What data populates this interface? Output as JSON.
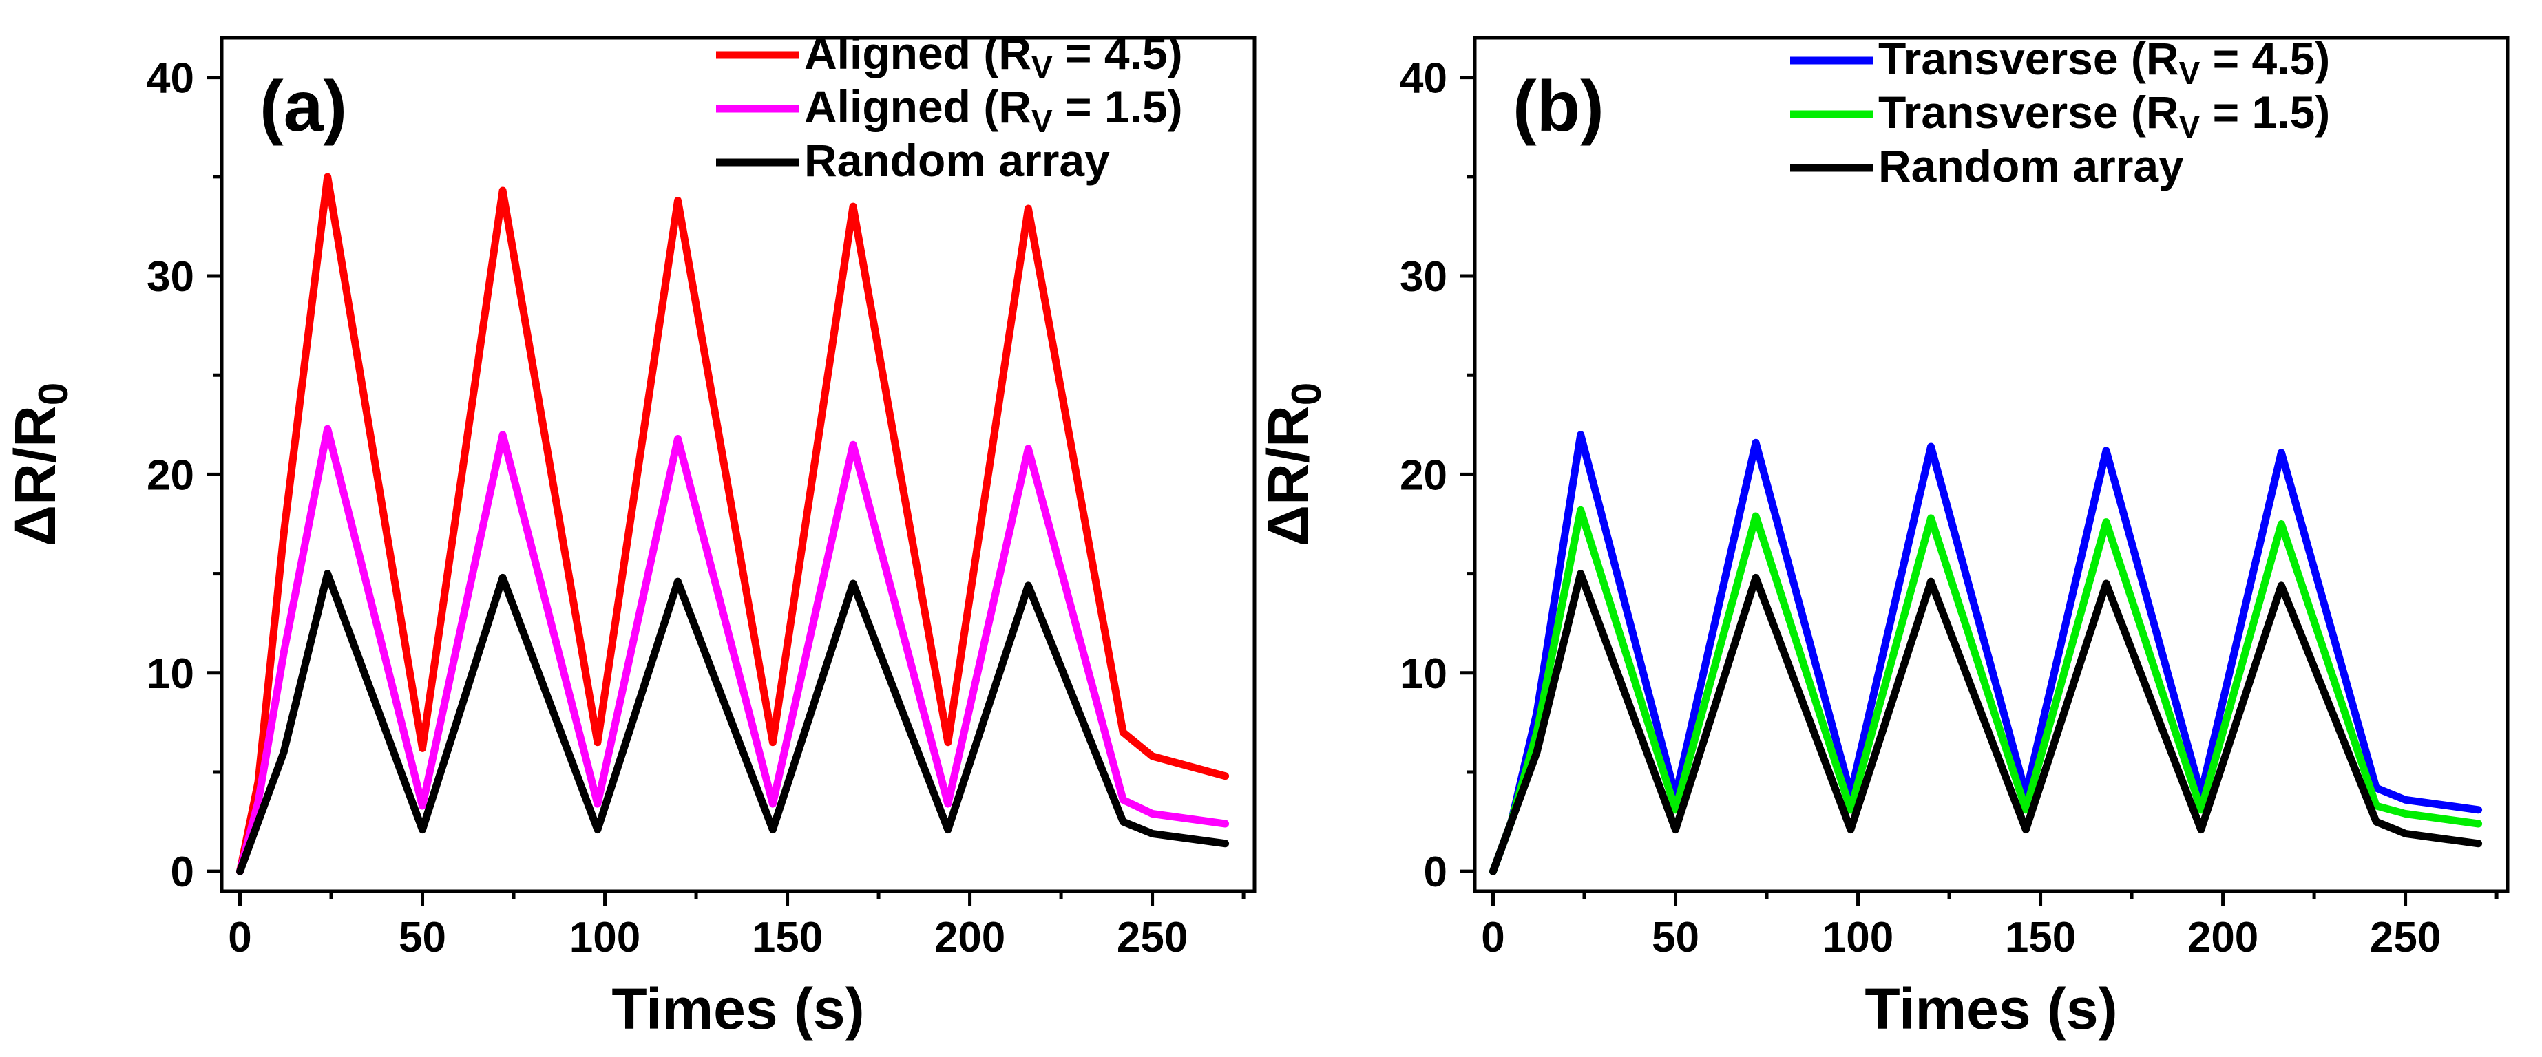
{
  "chart_data": [
    {
      "type": "line",
      "panel_label": "(a)",
      "xlabel": "Times (s)",
      "ylabel": {
        "main": "ΔR/R",
        "sub": "0"
      },
      "xlim": [
        -5,
        278
      ],
      "ylim": [
        -1,
        42
      ],
      "xticks": [
        0,
        50,
        100,
        150,
        200,
        250
      ],
      "yticks": [
        0,
        10,
        20,
        30,
        40
      ],
      "legend_position": "top-right",
      "series": [
        {
          "name": "Aligned (RV = 4.5)",
          "label_parts": [
            "Aligned (R",
            "V",
            " = 4.5)"
          ],
          "color": "#ff0000",
          "points": [
            [
              0,
              0
            ],
            [
              5,
              4.5
            ],
            [
              12,
              17
            ],
            [
              24,
              35
            ],
            [
              50,
              6.2
            ],
            [
              72,
              34.3
            ],
            [
              98,
              6.5
            ],
            [
              120,
              33.8
            ],
            [
              146,
              6.5
            ],
            [
              168,
              33.5
            ],
            [
              194,
              6.5
            ],
            [
              216,
              33.4
            ],
            [
              242,
              7
            ],
            [
              250,
              5.8
            ],
            [
              270,
              4.8
            ]
          ]
        },
        {
          "name": "Aligned (RV = 1.5)",
          "label_parts": [
            "Aligned (R",
            "V",
            " = 1.5)"
          ],
          "color": "#ff00ff",
          "points": [
            [
              0,
              0
            ],
            [
              5,
              3.5
            ],
            [
              12,
              11
            ],
            [
              24,
              22.3
            ],
            [
              50,
              3.3
            ],
            [
              72,
              22
            ],
            [
              98,
              3.4
            ],
            [
              120,
              21.8
            ],
            [
              146,
              3.4
            ],
            [
              168,
              21.5
            ],
            [
              194,
              3.4
            ],
            [
              216,
              21.3
            ],
            [
              242,
              3.6
            ],
            [
              250,
              2.9
            ],
            [
              270,
              2.4
            ]
          ]
        },
        {
          "name": "Random array",
          "label_parts": [
            "Random array",
            "",
            ""
          ],
          "color": "#000000",
          "points": [
            [
              0,
              0
            ],
            [
              5,
              2.5
            ],
            [
              12,
              6
            ],
            [
              24,
              15
            ],
            [
              50,
              2.1
            ],
            [
              72,
              14.8
            ],
            [
              98,
              2.1
            ],
            [
              120,
              14.6
            ],
            [
              146,
              2.1
            ],
            [
              168,
              14.5
            ],
            [
              194,
              2.1
            ],
            [
              216,
              14.4
            ],
            [
              242,
              2.5
            ],
            [
              250,
              1.9
            ],
            [
              270,
              1.4
            ]
          ]
        }
      ]
    },
    {
      "type": "line",
      "panel_label": "(b)",
      "xlabel": "Times (s)",
      "ylabel": {
        "main": "ΔR/R",
        "sub": "0"
      },
      "xlim": [
        -5,
        278
      ],
      "ylim": [
        -1,
        42
      ],
      "xticks": [
        0,
        50,
        100,
        150,
        200,
        250
      ],
      "yticks": [
        0,
        10,
        20,
        30,
        40
      ],
      "legend_position": "top-right",
      "series": [
        {
          "name": "Transverse (RV = 4.5)",
          "label_parts": [
            "Transverse (R",
            "V",
            " = 4.5)"
          ],
          "color": "#0000ff",
          "points": [
            [
              0,
              0
            ],
            [
              5,
              2.5
            ],
            [
              12,
              8
            ],
            [
              24,
              22
            ],
            [
              50,
              3.8
            ],
            [
              72,
              21.6
            ],
            [
              98,
              3.9
            ],
            [
              120,
              21.4
            ],
            [
              146,
              3.9
            ],
            [
              168,
              21.2
            ],
            [
              194,
              3.9
            ],
            [
              216,
              21.1
            ],
            [
              242,
              4.2
            ],
            [
              250,
              3.6
            ],
            [
              270,
              3.1
            ]
          ]
        },
        {
          "name": "Transverse (RV = 1.5)",
          "label_parts": [
            "Transverse (R",
            "V",
            " = 1.5)"
          ],
          "color": "#00ee00",
          "points": [
            [
              0,
              0
            ],
            [
              5,
              2.5
            ],
            [
              12,
              7
            ],
            [
              24,
              18.2
            ],
            [
              50,
              3.1
            ],
            [
              72,
              17.9
            ],
            [
              98,
              3.1
            ],
            [
              120,
              17.8
            ],
            [
              146,
              3.1
            ],
            [
              168,
              17.6
            ],
            [
              194,
              3.1
            ],
            [
              216,
              17.5
            ],
            [
              242,
              3.3
            ],
            [
              250,
              2.9
            ],
            [
              270,
              2.4
            ]
          ]
        },
        {
          "name": "Random array",
          "label_parts": [
            "Random array",
            "",
            ""
          ],
          "color": "#000000",
          "points": [
            [
              0,
              0
            ],
            [
              5,
              2.5
            ],
            [
              12,
              6
            ],
            [
              24,
              15
            ],
            [
              50,
              2.1
            ],
            [
              72,
              14.8
            ],
            [
              98,
              2.1
            ],
            [
              120,
              14.6
            ],
            [
              146,
              2.1
            ],
            [
              168,
              14.5
            ],
            [
              194,
              2.1
            ],
            [
              216,
              14.4
            ],
            [
              242,
              2.5
            ],
            [
              250,
              1.9
            ],
            [
              270,
              1.4
            ]
          ]
        }
      ]
    }
  ]
}
